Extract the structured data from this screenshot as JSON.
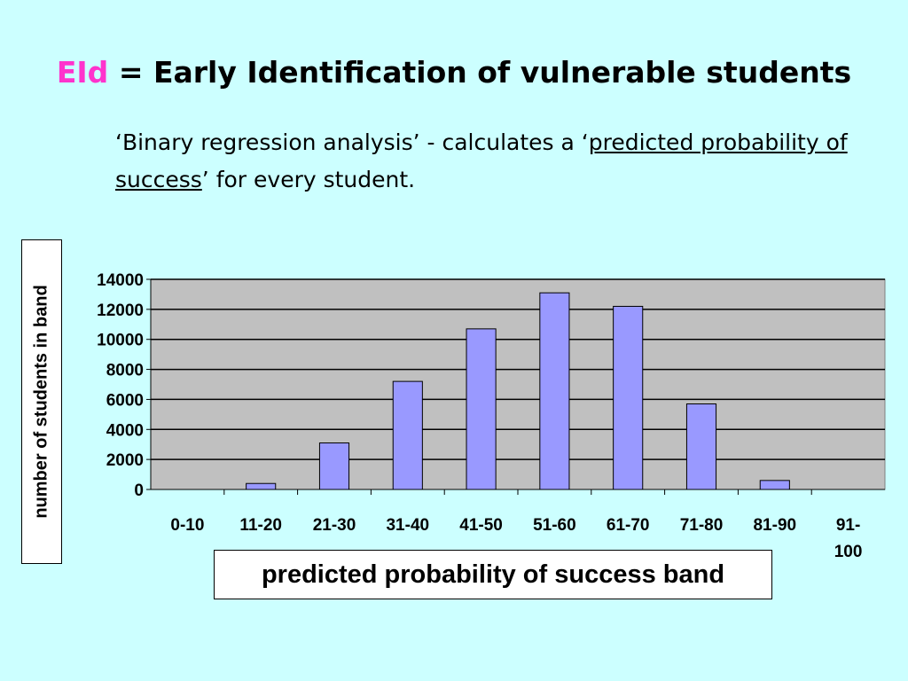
{
  "slide": {
    "title_abbr": "EId",
    "title_rest": "= Early Identification of vulnerable students",
    "subtitle_part1": "‘Binary regression analysis’ - calculates a ‘",
    "subtitle_underlined": "predicted probability of success",
    "subtitle_part2": "’ for every student."
  },
  "colors": {
    "background": "#ccffff",
    "title_abbr": "#ff33cc",
    "plot_area": "#c0c0c0",
    "bar_fill": "#9999ff"
  },
  "chart_data": {
    "type": "bar",
    "categories": [
      "0-10",
      "11-20",
      "21-30",
      "31-40",
      "41-50",
      "51-60",
      "61-70",
      "71-80",
      "81-90",
      "91-100"
    ],
    "values": [
      0,
      400,
      3100,
      7200,
      10700,
      13100,
      12200,
      5700,
      600,
      0
    ],
    "xlabel": "predicted probability of success band",
    "ylabel": "number of students in band",
    "ylim": [
      0,
      14000
    ],
    "yticks": [
      "0",
      "2000",
      "4000",
      "6000",
      "8000",
      "10000",
      "12000",
      "14000"
    ],
    "grid": true,
    "legend": "none"
  }
}
